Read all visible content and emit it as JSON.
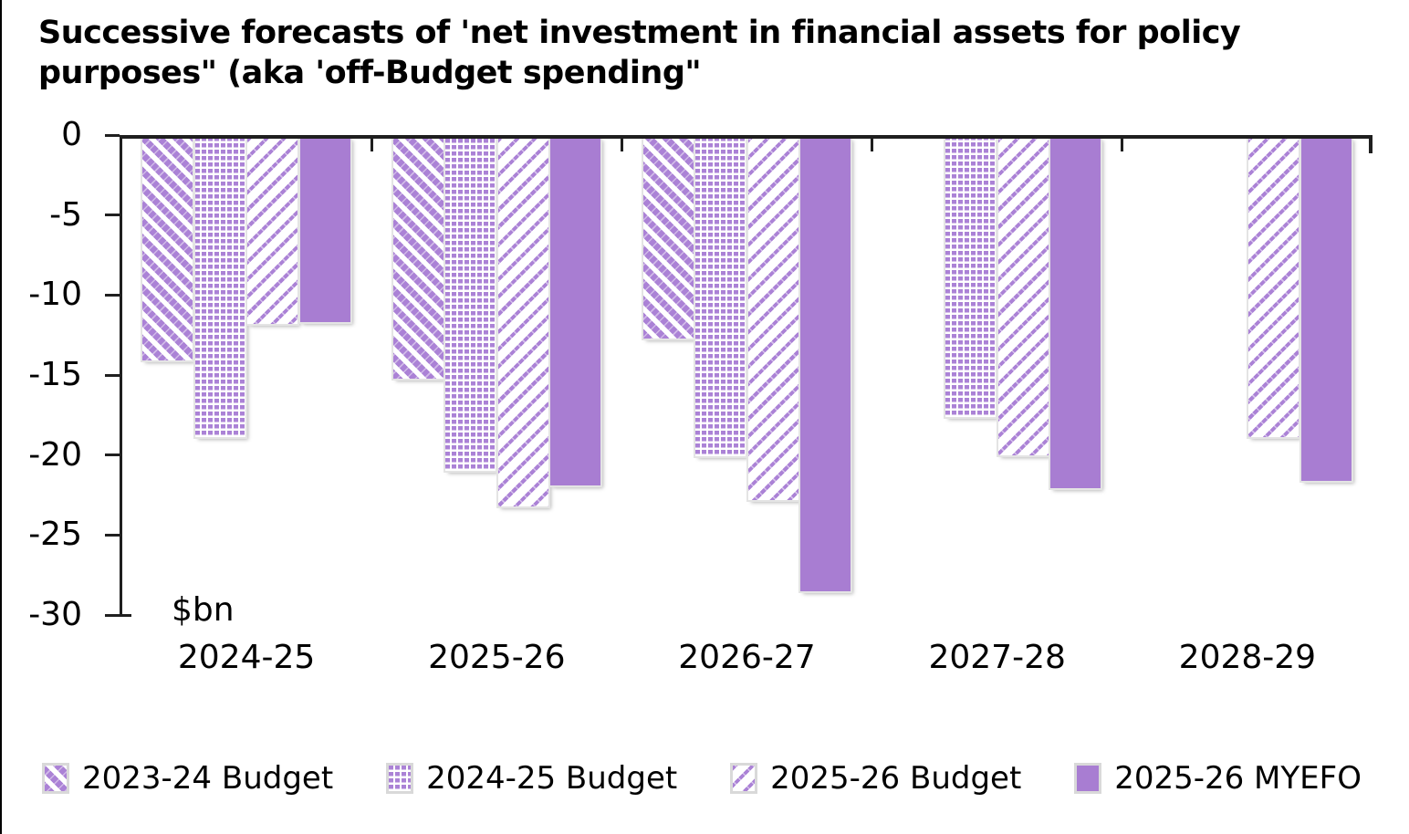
{
  "page": {
    "title_line1": "Successive forecasts of 'net investment in financial assets for policy",
    "title_line2": "purposes\" (aka 'off-Budget spending\""
  },
  "chart_data": {
    "type": "bar",
    "title": "Successive forecasts of 'net investment in financial assets for policy purposes\" (aka 'off-Budget spending\"",
    "unit_note": "$bn",
    "categories": [
      "2024-25",
      "2025-26",
      "2026-27",
      "2027-28",
      "2028-29"
    ],
    "series": [
      {
        "name": "2023-24 Budget",
        "pattern": "diag-down-hatch",
        "values": [
          -14.1,
          -15.2,
          -12.7,
          null,
          null
        ]
      },
      {
        "name": "2024-25 Budget",
        "pattern": "dot-grid",
        "values": [
          -18.9,
          -21.0,
          -20.1,
          -17.6,
          null
        ]
      },
      {
        "name": "2025-26 Budget",
        "pattern": "diag-up-hatch",
        "values": [
          -11.8,
          -23.2,
          -22.8,
          -20.0,
          -18.9
        ]
      },
      {
        "name": "2025-26 MYEFO",
        "pattern": "solid",
        "values": [
          -11.7,
          -21.9,
          -28.5,
          -22.1,
          -21.6
        ]
      }
    ],
    "ylim": [
      -30,
      0
    ],
    "yticks": [
      0,
      -5,
      -10,
      -15,
      -20,
      -25,
      -30
    ],
    "xlabel": "",
    "ylabel": "$bn",
    "grid": false,
    "legend_position": "bottom",
    "colors": {
      "bar_purple": "#a87dd2",
      "pattern_purple": "#ab82d6",
      "axis": "#1f1f1f",
      "swatch_border": "#d9d9d9"
    }
  }
}
